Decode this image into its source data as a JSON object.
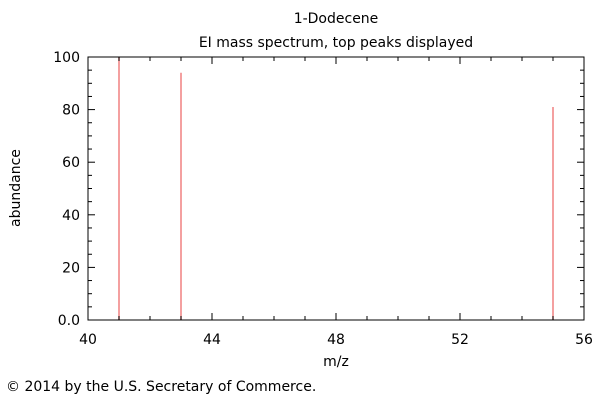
{
  "chart_data": {
    "type": "bar",
    "title": "1-Dodecene",
    "subtitle": "EI mass spectrum, top peaks displayed",
    "xlabel": "m/z",
    "ylabel": "abundance",
    "xlim": [
      40,
      56
    ],
    "ylim": [
      0,
      100
    ],
    "x_ticks": [
      "40",
      "44",
      "48",
      "52",
      "56"
    ],
    "y_ticks": [
      "0.0",
      "20",
      "40",
      "60",
      "80",
      "100"
    ],
    "grid": false,
    "peak_color": "#f08080",
    "peaks": [
      {
        "mz": 41,
        "abundance": 100
      },
      {
        "mz": 43,
        "abundance": 94
      },
      {
        "mz": 55,
        "abundance": 81
      }
    ]
  },
  "footer": {
    "copyright": "© 2014 by the U.S. Secretary of Commerce."
  }
}
